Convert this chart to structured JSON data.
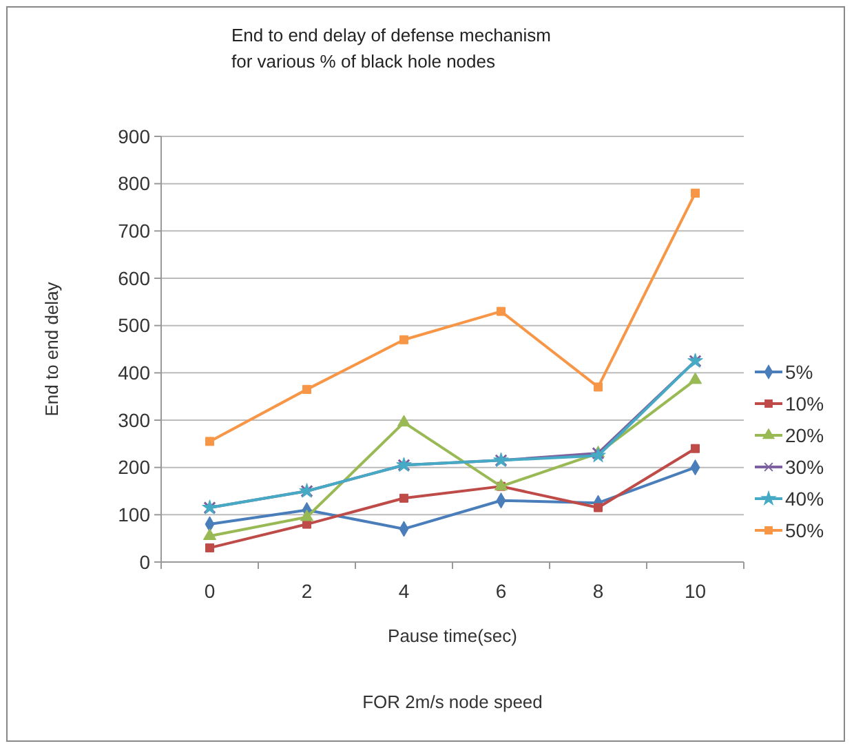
{
  "chart_data": {
    "type": "line",
    "title": "End to end delay of defense mechanism\nfor various % of black hole nodes",
    "xlabel": "Pause time(sec)",
    "ylabel": "End to end delay",
    "annotations": [
      "FOR 2m/s node speed"
    ],
    "categories": [
      "0",
      "2",
      "4",
      "6",
      "8",
      "10"
    ],
    "ylim": [
      0,
      900
    ],
    "yticks": [
      0,
      100,
      200,
      300,
      400,
      500,
      600,
      700,
      800,
      900
    ],
    "grid": "y",
    "legend": "right",
    "series": [
      {
        "name": "5%",
        "color": "#4a7ebb",
        "marker": "diamond",
        "values": [
          80,
          110,
          70,
          130,
          125,
          200
        ]
      },
      {
        "name": "10%",
        "color": "#be4b48",
        "marker": "square",
        "values": [
          30,
          80,
          135,
          160,
          115,
          240
        ]
      },
      {
        "name": "20%",
        "color": "#98b954",
        "marker": "triangle",
        "values": [
          55,
          95,
          295,
          160,
          230,
          385
        ]
      },
      {
        "name": "30%",
        "color": "#7d60a0",
        "marker": "cross",
        "values": [
          115,
          150,
          205,
          215,
          230,
          425
        ]
      },
      {
        "name": "40%",
        "color": "#46aac5",
        "marker": "star",
        "values": [
          115,
          150,
          205,
          215,
          225,
          425
        ]
      },
      {
        "name": "50%",
        "color": "#f79646",
        "marker": "square",
        "values": [
          255,
          365,
          470,
          530,
          370,
          780
        ]
      }
    ]
  }
}
